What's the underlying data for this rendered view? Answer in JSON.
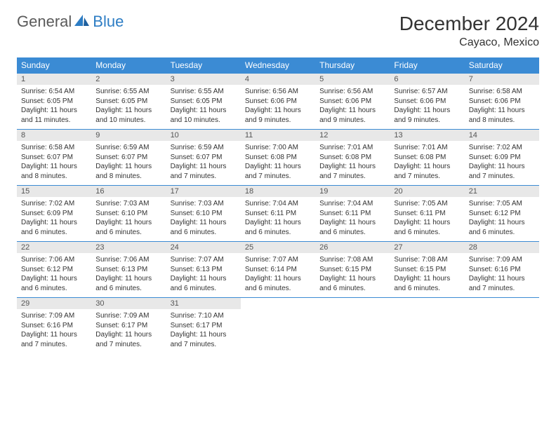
{
  "logo": {
    "word1": "General",
    "word2": "Blue"
  },
  "title": "December 2024",
  "location": "Cayaco, Mexico",
  "colors": {
    "header_bg": "#3b8bd4",
    "header_text": "#ffffff",
    "daynum_bg": "#e8e8e8",
    "body_text": "#333333",
    "logo_gray": "#5a5a5a",
    "logo_blue": "#2d7dc4",
    "row_border": "#3b8bd4"
  },
  "day_headers": [
    "Sunday",
    "Monday",
    "Tuesday",
    "Wednesday",
    "Thursday",
    "Friday",
    "Saturday"
  ],
  "weeks": [
    [
      {
        "n": "1",
        "sr": "Sunrise: 6:54 AM",
        "ss": "Sunset: 6:05 PM",
        "d1": "Daylight: 11 hours",
        "d2": "and 11 minutes."
      },
      {
        "n": "2",
        "sr": "Sunrise: 6:55 AM",
        "ss": "Sunset: 6:05 PM",
        "d1": "Daylight: 11 hours",
        "d2": "and 10 minutes."
      },
      {
        "n": "3",
        "sr": "Sunrise: 6:55 AM",
        "ss": "Sunset: 6:05 PM",
        "d1": "Daylight: 11 hours",
        "d2": "and 10 minutes."
      },
      {
        "n": "4",
        "sr": "Sunrise: 6:56 AM",
        "ss": "Sunset: 6:06 PM",
        "d1": "Daylight: 11 hours",
        "d2": "and 9 minutes."
      },
      {
        "n": "5",
        "sr": "Sunrise: 6:56 AM",
        "ss": "Sunset: 6:06 PM",
        "d1": "Daylight: 11 hours",
        "d2": "and 9 minutes."
      },
      {
        "n": "6",
        "sr": "Sunrise: 6:57 AM",
        "ss": "Sunset: 6:06 PM",
        "d1": "Daylight: 11 hours",
        "d2": "and 9 minutes."
      },
      {
        "n": "7",
        "sr": "Sunrise: 6:58 AM",
        "ss": "Sunset: 6:06 PM",
        "d1": "Daylight: 11 hours",
        "d2": "and 8 minutes."
      }
    ],
    [
      {
        "n": "8",
        "sr": "Sunrise: 6:58 AM",
        "ss": "Sunset: 6:07 PM",
        "d1": "Daylight: 11 hours",
        "d2": "and 8 minutes."
      },
      {
        "n": "9",
        "sr": "Sunrise: 6:59 AM",
        "ss": "Sunset: 6:07 PM",
        "d1": "Daylight: 11 hours",
        "d2": "and 8 minutes."
      },
      {
        "n": "10",
        "sr": "Sunrise: 6:59 AM",
        "ss": "Sunset: 6:07 PM",
        "d1": "Daylight: 11 hours",
        "d2": "and 7 minutes."
      },
      {
        "n": "11",
        "sr": "Sunrise: 7:00 AM",
        "ss": "Sunset: 6:08 PM",
        "d1": "Daylight: 11 hours",
        "d2": "and 7 minutes."
      },
      {
        "n": "12",
        "sr": "Sunrise: 7:01 AM",
        "ss": "Sunset: 6:08 PM",
        "d1": "Daylight: 11 hours",
        "d2": "and 7 minutes."
      },
      {
        "n": "13",
        "sr": "Sunrise: 7:01 AM",
        "ss": "Sunset: 6:08 PM",
        "d1": "Daylight: 11 hours",
        "d2": "and 7 minutes."
      },
      {
        "n": "14",
        "sr": "Sunrise: 7:02 AM",
        "ss": "Sunset: 6:09 PM",
        "d1": "Daylight: 11 hours",
        "d2": "and 7 minutes."
      }
    ],
    [
      {
        "n": "15",
        "sr": "Sunrise: 7:02 AM",
        "ss": "Sunset: 6:09 PM",
        "d1": "Daylight: 11 hours",
        "d2": "and 6 minutes."
      },
      {
        "n": "16",
        "sr": "Sunrise: 7:03 AM",
        "ss": "Sunset: 6:10 PM",
        "d1": "Daylight: 11 hours",
        "d2": "and 6 minutes."
      },
      {
        "n": "17",
        "sr": "Sunrise: 7:03 AM",
        "ss": "Sunset: 6:10 PM",
        "d1": "Daylight: 11 hours",
        "d2": "and 6 minutes."
      },
      {
        "n": "18",
        "sr": "Sunrise: 7:04 AM",
        "ss": "Sunset: 6:11 PM",
        "d1": "Daylight: 11 hours",
        "d2": "and 6 minutes."
      },
      {
        "n": "19",
        "sr": "Sunrise: 7:04 AM",
        "ss": "Sunset: 6:11 PM",
        "d1": "Daylight: 11 hours",
        "d2": "and 6 minutes."
      },
      {
        "n": "20",
        "sr": "Sunrise: 7:05 AM",
        "ss": "Sunset: 6:11 PM",
        "d1": "Daylight: 11 hours",
        "d2": "and 6 minutes."
      },
      {
        "n": "21",
        "sr": "Sunrise: 7:05 AM",
        "ss": "Sunset: 6:12 PM",
        "d1": "Daylight: 11 hours",
        "d2": "and 6 minutes."
      }
    ],
    [
      {
        "n": "22",
        "sr": "Sunrise: 7:06 AM",
        "ss": "Sunset: 6:12 PM",
        "d1": "Daylight: 11 hours",
        "d2": "and 6 minutes."
      },
      {
        "n": "23",
        "sr": "Sunrise: 7:06 AM",
        "ss": "Sunset: 6:13 PM",
        "d1": "Daylight: 11 hours",
        "d2": "and 6 minutes."
      },
      {
        "n": "24",
        "sr": "Sunrise: 7:07 AM",
        "ss": "Sunset: 6:13 PM",
        "d1": "Daylight: 11 hours",
        "d2": "and 6 minutes."
      },
      {
        "n": "25",
        "sr": "Sunrise: 7:07 AM",
        "ss": "Sunset: 6:14 PM",
        "d1": "Daylight: 11 hours",
        "d2": "and 6 minutes."
      },
      {
        "n": "26",
        "sr": "Sunrise: 7:08 AM",
        "ss": "Sunset: 6:15 PM",
        "d1": "Daylight: 11 hours",
        "d2": "and 6 minutes."
      },
      {
        "n": "27",
        "sr": "Sunrise: 7:08 AM",
        "ss": "Sunset: 6:15 PM",
        "d1": "Daylight: 11 hours",
        "d2": "and 6 minutes."
      },
      {
        "n": "28",
        "sr": "Sunrise: 7:09 AM",
        "ss": "Sunset: 6:16 PM",
        "d1": "Daylight: 11 hours",
        "d2": "and 7 minutes."
      }
    ],
    [
      {
        "n": "29",
        "sr": "Sunrise: 7:09 AM",
        "ss": "Sunset: 6:16 PM",
        "d1": "Daylight: 11 hours",
        "d2": "and 7 minutes."
      },
      {
        "n": "30",
        "sr": "Sunrise: 7:09 AM",
        "ss": "Sunset: 6:17 PM",
        "d1": "Daylight: 11 hours",
        "d2": "and 7 minutes."
      },
      {
        "n": "31",
        "sr": "Sunrise: 7:10 AM",
        "ss": "Sunset: 6:17 PM",
        "d1": "Daylight: 11 hours",
        "d2": "and 7 minutes."
      },
      {
        "empty": true
      },
      {
        "empty": true
      },
      {
        "empty": true
      },
      {
        "empty": true
      }
    ]
  ]
}
